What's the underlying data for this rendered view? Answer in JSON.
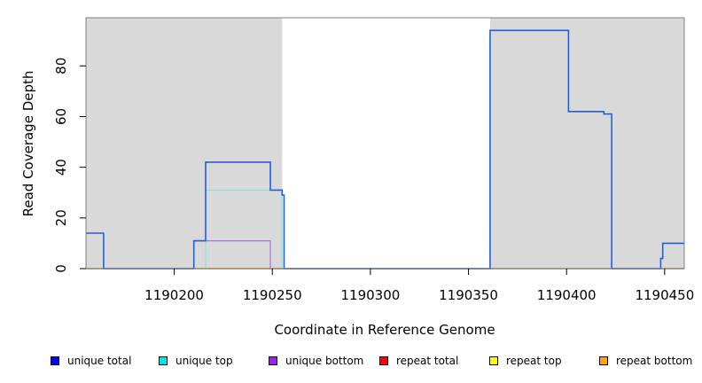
{
  "chart_data": {
    "type": "line",
    "xlabel": "Coordinate in Reference Genome",
    "ylabel": "Read Coverage Depth",
    "xlim": [
      1190155,
      1190460
    ],
    "ylim": [
      0,
      99
    ],
    "x_ticks": [
      1190200,
      1190250,
      1190300,
      1190350,
      1190400,
      1190450
    ],
    "x_tick_labels": [
      "1190200",
      "1190250",
      "1190300",
      "1190350",
      "1190400",
      "1190450"
    ],
    "y_ticks": [
      0,
      20,
      40,
      60,
      80
    ],
    "y_tick_labels": [
      "0",
      "20",
      "40",
      "60",
      "80"
    ],
    "shaded_regions": [
      {
        "x0": 1190155,
        "x1": 1190255,
        "color": "#d9d9d9"
      },
      {
        "x0": 1190361,
        "x1": 1190460,
        "color": "#d9d9d9"
      }
    ],
    "series": [
      {
        "name": "unique total",
        "color": "#1f5fe0",
        "x": [
          1190155,
          1190164,
          1190164,
          1190210,
          1190210,
          1190216,
          1190216,
          1190249,
          1190249,
          1190255,
          1190255,
          1190256,
          1190256,
          1190361,
          1190361,
          1190401,
          1190401,
          1190419,
          1190419,
          1190423,
          1190423,
          1190448,
          1190448,
          1190449,
          1190449,
          1190460
        ],
        "y": [
          14,
          14,
          0,
          0,
          11,
          11,
          42,
          42,
          31,
          31,
          29,
          29,
          0,
          0,
          94,
          94,
          62,
          62,
          61,
          61,
          0,
          0,
          4,
          4,
          10,
          10
        ]
      },
      {
        "name": "unique top",
        "color": "#7ee8e0",
        "x": [
          1190155,
          1190216,
          1190216,
          1190255,
          1190255,
          1190460
        ],
        "y": [
          0,
          0,
          31,
          31,
          0,
          0
        ]
      },
      {
        "name": "unique bottom",
        "color": "#b070e0",
        "x": [
          1190155,
          1190210,
          1190210,
          1190249,
          1190249,
          1190460
        ],
        "y": [
          0,
          0,
          11,
          11,
          0,
          0
        ]
      },
      {
        "name": "repeat total",
        "color": "#e01010",
        "x": [
          1190155,
          1190460
        ],
        "y": [
          0,
          0
        ]
      },
      {
        "name": "repeat top",
        "color": "#e8e800",
        "x": [
          1190155,
          1190460
        ],
        "y": [
          0,
          0
        ]
      },
      {
        "name": "repeat bottom",
        "color": "#f0a000",
        "x": [
          1190155,
          1190460
        ],
        "y": [
          0,
          0
        ]
      }
    ]
  },
  "legend": [
    {
      "label": "unique total",
      "color": "#0000ff"
    },
    {
      "label": "unique top",
      "color": "#00e5e5"
    },
    {
      "label": "unique bottom",
      "color": "#a020f0"
    },
    {
      "label": "repeat total",
      "color": "#ff0000"
    },
    {
      "label": "repeat top",
      "color": "#ffff00"
    },
    {
      "label": "repeat bottom",
      "color": "#ffa500"
    }
  ]
}
